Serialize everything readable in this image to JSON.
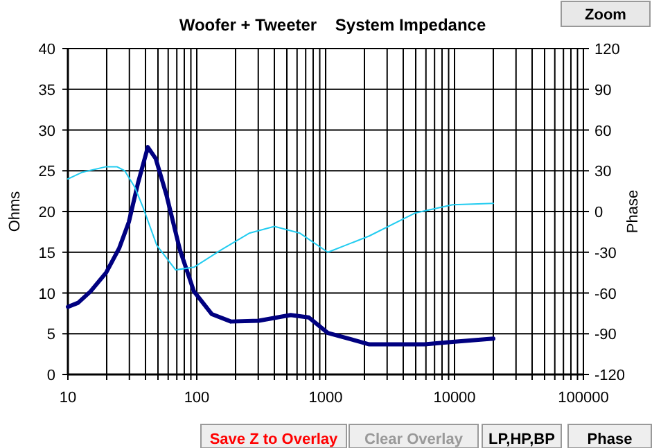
{
  "chart_data": {
    "type": "line",
    "title": "Woofer + Tweeter    System Impedance",
    "ylabel": "Ohms",
    "y2label": "Phase",
    "annotations": [
      "Zoom",
      "Save Z to Overlay",
      "Clear Overlay",
      "LP,HP,BP",
      "Phase"
    ],
    "log": "x",
    "grid": true,
    "marker": "none",
    "line_style": "solid",
    "xlim": [
      10,
      100000
    ],
    "ylim": [
      0,
      40
    ],
    "y2lim": [
      -120,
      120
    ],
    "xticks": [
      10,
      {
        "value": 20,
        "label": null
      },
      {
        "value": 30,
        "label": null
      },
      {
        "value": 40,
        "label": null
      },
      {
        "value": 50,
        "label": null
      },
      {
        "value": 60,
        "label": null
      },
      {
        "value": 70,
        "label": null
      },
      {
        "value": 80,
        "label": null
      },
      {
        "value": 90,
        "label": null
      },
      100,
      {
        "value": 200,
        "label": null
      },
      {
        "value": 300,
        "label": null
      },
      {
        "value": 400,
        "label": null
      },
      {
        "value": 500,
        "label": null
      },
      {
        "value": 600,
        "label": null
      },
      {
        "value": 700,
        "label": null
      },
      {
        "value": 800,
        "label": null
      },
      {
        "value": 900,
        "label": null
      },
      1000,
      {
        "value": 2000,
        "label": null
      },
      {
        "value": 3000,
        "label": null
      },
      {
        "value": 4000,
        "label": null
      },
      {
        "value": 5000,
        "label": null
      },
      {
        "value": 6000,
        "label": null
      },
      {
        "value": 7000,
        "label": null
      },
      {
        "value": 8000,
        "label": null
      },
      {
        "value": 9000,
        "label": null
      },
      10000,
      {
        "value": 20000,
        "label": null
      },
      {
        "value": 30000,
        "label": null
      },
      {
        "value": 40000,
        "label": null
      },
      {
        "value": 50000,
        "label": null
      },
      {
        "value": 60000,
        "label": null
      },
      {
        "value": 70000,
        "label": null
      },
      {
        "value": 80000,
        "label": null
      },
      {
        "value": 90000,
        "label": null
      },
      100000
    ],
    "yticks": [
      0,
      5,
      10,
      15,
      20,
      25,
      30,
      35,
      40
    ],
    "y2ticks": [
      -120,
      -90,
      -60,
      -30,
      0,
      30,
      60,
      90,
      120
    ],
    "series": [
      {
        "color": "#000080",
        "x": [
          10,
          12,
          15,
          19.8,
          25,
          29.7,
          35,
          41.7,
          48,
          58,
          74,
          95,
          131,
          184,
          302,
          535,
          740,
          1040,
          1770,
          2180,
          5870,
          9640,
          20000
        ],
        "values": [
          8.3,
          8.8,
          10.2,
          12.5,
          15.5,
          18.7,
          23.5,
          27.9,
          26.5,
          22.1,
          15.3,
          10.2,
          7.4,
          6.5,
          6.6,
          7.3,
          7.0,
          5.1,
          4.1,
          3.7,
          3.7,
          4.0,
          4.4
        ]
      },
      {
        "color": "#22ccf0",
        "axis": "y2",
        "x": [
          10,
          13,
          19.8,
          24,
          27.6,
          33,
          38.3,
          49,
          68.5,
          95,
          156,
          255,
          400,
          633,
          1040,
          2180,
          4980,
          9640,
          20000
        ],
        "values": [
          24,
          29,
          33,
          33,
          30,
          18,
          3,
          -25,
          -43,
          -41,
          -28,
          -16,
          -11,
          -16,
          -30,
          -18,
          -1,
          5,
          6
        ]
      }
    ]
  }
}
